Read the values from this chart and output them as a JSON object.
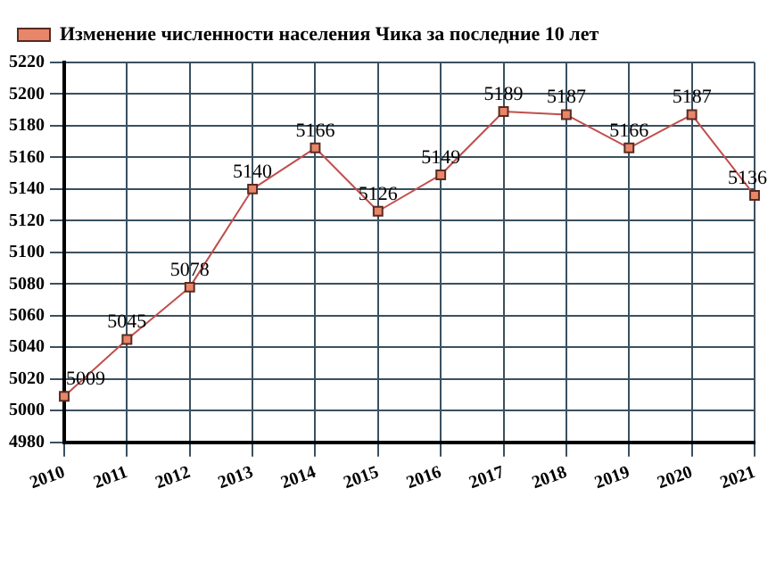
{
  "chart_data": {
    "type": "line",
    "categories": [
      "2010",
      "2011",
      "2012",
      "2013",
      "2014",
      "2015",
      "2016",
      "2017",
      "2018",
      "2019",
      "2020",
      "2021"
    ],
    "series": [
      {
        "name": "Изменение численности населения Чика за последние 10 лет",
        "color": "#c0504d",
        "values": [
          5009,
          5045,
          5078,
          5140,
          5166,
          5126,
          5149,
          5189,
          5187,
          5166,
          5187,
          5136
        ]
      }
    ],
    "ylim": [
      4980,
      5220
    ],
    "yticks": [
      4980,
      5000,
      5020,
      5040,
      5060,
      5080,
      5100,
      5120,
      5140,
      5160,
      5180,
      5200,
      5220
    ],
    "grid": true,
    "legend": "top left",
    "marker": "square",
    "line_style": "solid",
    "data_labels": true
  }
}
